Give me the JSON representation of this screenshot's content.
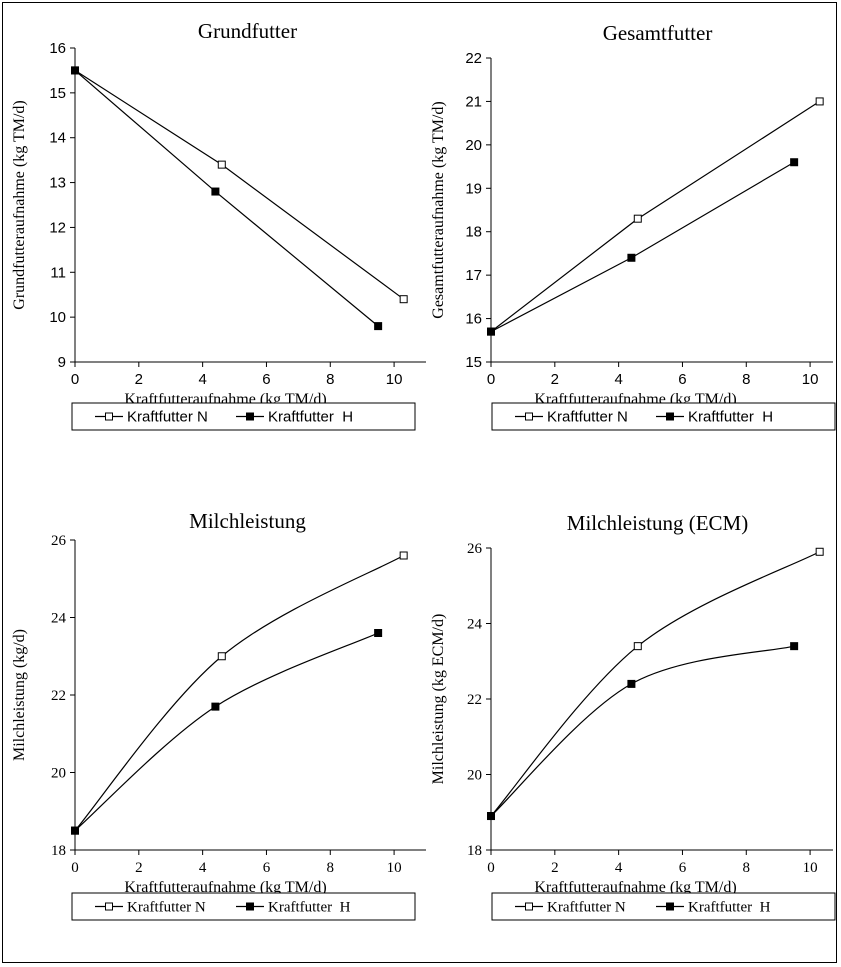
{
  "chart_data": [
    {
      "type": "line",
      "title": "Grundfutter",
      "xlabel": "Kraftfutteraufnahme (kg TM/d)",
      "ylabel": "Grundfutteraufnahme (kg TM/d)",
      "xlim": [
        0,
        11
      ],
      "ylim": [
        9,
        16
      ],
      "xticks": [
        0,
        2,
        4,
        6,
        8,
        10
      ],
      "yticks": [
        9,
        10,
        11,
        12,
        13,
        14,
        15,
        16
      ],
      "smooth": false,
      "legend_position": "bottom",
      "series": [
        {
          "name": "Kraftfutter N",
          "marker": "open-square",
          "x": [
            0,
            4.6,
            10.3
          ],
          "y": [
            15.5,
            13.4,
            10.4
          ]
        },
        {
          "name": "Kraftfutter  H",
          "marker": "filled-square",
          "x": [
            0,
            4.4,
            9.5
          ],
          "y": [
            15.5,
            12.8,
            9.8
          ]
        }
      ]
    },
    {
      "type": "line",
      "title": "Gesamtfutter",
      "xlabel": "Kraftfutteraufnahme (kg TM/d)",
      "ylabel": "Gesamtfutteraufnahme (kg TM/d)",
      "xlim": [
        0,
        11
      ],
      "ylim": [
        15,
        22
      ],
      "xticks": [
        0,
        2,
        4,
        6,
        8,
        10
      ],
      "yticks": [
        15,
        16,
        17,
        18,
        19,
        20,
        21,
        22
      ],
      "smooth": false,
      "legend_position": "bottom",
      "series": [
        {
          "name": "Kraftfutter N",
          "marker": "open-square",
          "x": [
            0,
            4.6,
            10.3
          ],
          "y": [
            15.7,
            18.3,
            21.0
          ]
        },
        {
          "name": "Kraftfutter  H",
          "marker": "filled-square",
          "x": [
            0,
            4.4,
            9.5
          ],
          "y": [
            15.7,
            17.4,
            19.6
          ]
        }
      ]
    },
    {
      "type": "line",
      "title": "Milchleistung",
      "xlabel": "Kraftfutteraufnahme (kg TM/d)",
      "ylabel": "Milchleistung (kg/d)",
      "xlim": [
        0,
        11
      ],
      "ylim": [
        18,
        26
      ],
      "xticks": [
        0,
        2,
        4,
        6,
        8,
        10
      ],
      "yticks": [
        18,
        20,
        22,
        24,
        26
      ],
      "smooth": true,
      "legend_position": "bottom",
      "series": [
        {
          "name": "Kraftfutter N",
          "marker": "open-square",
          "x": [
            0,
            4.6,
            10.3
          ],
          "y": [
            18.5,
            23.0,
            25.6
          ]
        },
        {
          "name": "Kraftfutter  H",
          "marker": "filled-square",
          "x": [
            0,
            4.4,
            9.5
          ],
          "y": [
            18.5,
            21.7,
            23.6
          ]
        }
      ]
    },
    {
      "type": "line",
      "title": "Milchleistung (ECM)",
      "xlabel": "Kraftfutteraufnahme (kg TM/d)",
      "ylabel": "Milchleistung (kg ECM/d)",
      "xlim": [
        0,
        11
      ],
      "ylim": [
        18,
        26
      ],
      "xticks": [
        0,
        2,
        4,
        6,
        8,
        10
      ],
      "yticks": [
        18,
        20,
        22,
        24,
        26
      ],
      "smooth": true,
      "legend_position": "bottom",
      "series": [
        {
          "name": "Kraftfutter N",
          "marker": "open-square",
          "x": [
            0,
            4.6,
            10.3
          ],
          "y": [
            18.9,
            23.4,
            25.9
          ]
        },
        {
          "name": "Kraftfutter  H",
          "marker": "filled-square",
          "x": [
            0,
            4.4,
            9.5
          ],
          "y": [
            18.9,
            22.4,
            23.4
          ]
        }
      ]
    }
  ]
}
